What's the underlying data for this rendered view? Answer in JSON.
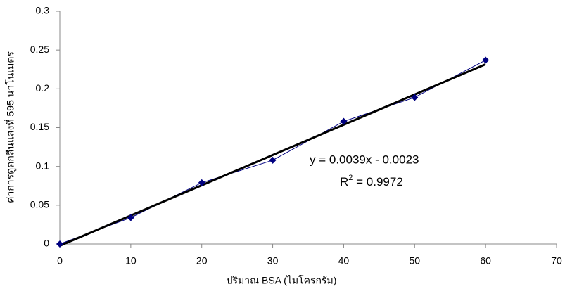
{
  "chart_data": {
    "type": "scatter-line",
    "x_label": "ปริมาณ BSA (ไมโครกรัม)",
    "y_label": "ค่าการดูดกลืนแสงที่ 595 นาโนเมตร",
    "x": [
      0,
      10,
      20,
      30,
      40,
      50,
      60
    ],
    "series": [
      {
        "color": "#000080",
        "values": [
          0,
          0.034,
          0.079,
          0.108,
          0.158,
          0.189,
          0.237
        ]
      }
    ],
    "trendline": {
      "color": "#000000",
      "slope": 0.0039,
      "intercept": -0.0023,
      "equation": "y = 0.0039x - 0.0023",
      "r2_prefix": "R",
      "r2_sup": "2",
      "r2_text": " = 0.9972"
    },
    "xlim": [
      0,
      70
    ],
    "xticks": [
      0,
      10,
      20,
      30,
      40,
      50,
      60,
      70
    ],
    "ylim": [
      0,
      0.3
    ],
    "yticks": [
      0,
      0.05,
      0.1,
      0.15,
      0.2,
      0.25,
      0.3
    ],
    "grid": false
  }
}
